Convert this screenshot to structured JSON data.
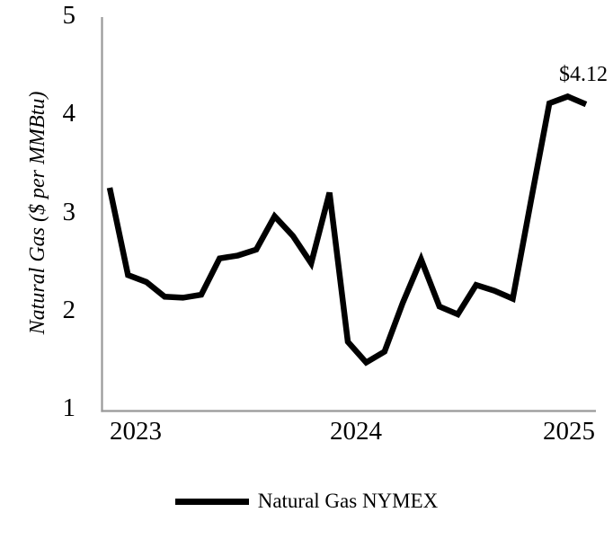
{
  "chart_data": {
    "type": "line",
    "title": "",
    "xlabel": "",
    "ylabel": "Natural Gas ($ per MMBtu)",
    "ylim": [
      1,
      5
    ],
    "yticks": [
      5,
      4,
      3,
      2,
      1
    ],
    "xtick_labels": [
      "2023",
      "2024",
      "2025"
    ],
    "grid": false,
    "legend_position": "bottom-center",
    "axis_color": "#999999",
    "line_color": "#000000",
    "annotation": {
      "text": "$4.12",
      "applies_to": "last point"
    },
    "series": [
      {
        "name": "Natural Gas NYMEX",
        "x": [
          "Jan 2023",
          "Feb 2023",
          "Mar 2023",
          "Apr 2023",
          "May 2023",
          "Jun 2023",
          "Jul 2023",
          "Aug 2023",
          "Sep 2023",
          "Oct 2023",
          "Nov 2023",
          "Dec 2023",
          "Jan 2024",
          "Feb 2024",
          "Mar 2024",
          "Apr 2024",
          "May 2024",
          "Jun 2024",
          "Jul 2024",
          "Aug 2024",
          "Sep 2024",
          "Oct 2024",
          "Nov 2024",
          "Dec 2024",
          "Jan 2025",
          "Feb 2025",
          "Mar 2025"
        ],
        "values": [
          3.27,
          2.38,
          2.31,
          2.16,
          2.15,
          2.18,
          2.55,
          2.58,
          2.64,
          2.98,
          2.78,
          2.5,
          3.22,
          1.7,
          1.49,
          1.6,
          2.1,
          2.54,
          2.06,
          1.98,
          2.28,
          2.22,
          2.14,
          3.14,
          4.13,
          4.2,
          4.12
        ]
      }
    ]
  }
}
